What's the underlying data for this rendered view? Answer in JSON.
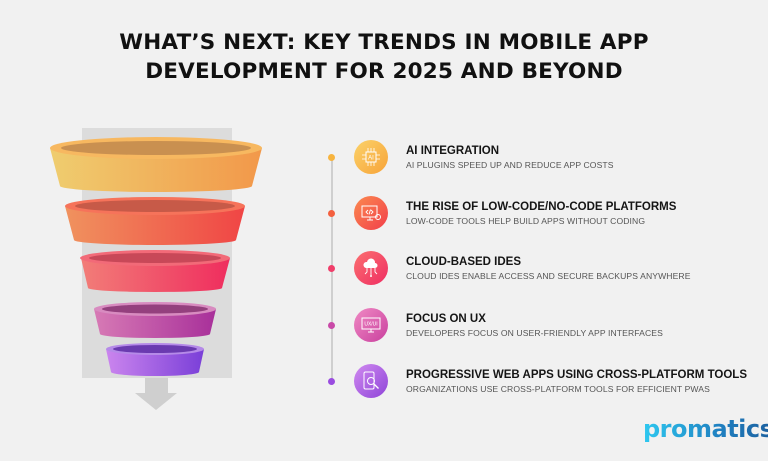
{
  "header": {
    "title_line1": "WHAT’S NEXT: KEY TRENDS IN MOBILE APP",
    "title_line2": "DEVELOPMENT FOR 2025 AND BEYOND"
  },
  "trends": [
    {
      "title": "AI INTEGRATION",
      "description": "AI PLUGINS SPEED UP AND REDUCE APP COSTS",
      "icon": "ai-chip-icon",
      "color": "#f7b43f"
    },
    {
      "title": "THE RISE OF LOW-CODE/NO-CODE PLATFORMS",
      "description": "LOW-CODE TOOLS HELP BUILD APPS WITHOUT CODING",
      "icon": "code-monitor-icon",
      "color": "#f4603f"
    },
    {
      "title": "CLOUD-BASED IDES",
      "description": "CLOUD IDES ENABLE ACCESS AND SECURE BACKUPS ANYWHERE",
      "icon": "cloud-network-icon",
      "color": "#f03e6a"
    },
    {
      "title": "FOCUS ON UX",
      "description": "DEVELOPERS FOCUS ON USER-FRIENDLY APP INTERFACES",
      "icon": "ux-ui-monitor-icon",
      "color": "#c94aa8"
    },
    {
      "title": "PROGRESSIVE WEB APPS USING CROSS-PLATFORM TOOLS",
      "description": "ORGANIZATIONS USE CROSS-PLATFORM TOOLS FOR EFFICIENT PWAS",
      "icon": "mobile-search-icon",
      "color": "#9a4ce0"
    }
  ],
  "icon_labels": {
    "ai": "AI",
    "ux": "UX/UI"
  },
  "brand": {
    "logo_text": "promatics"
  }
}
